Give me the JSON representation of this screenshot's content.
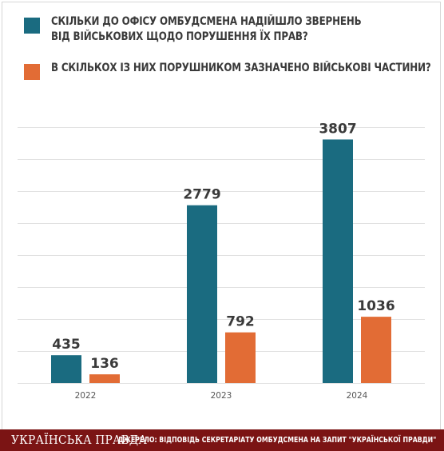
{
  "colors": {
    "series1": "#1a6b80",
    "series2": "#e26c35",
    "grid": "#e1e1e1",
    "footer": "#7b1414"
  },
  "chart_data": {
    "type": "bar",
    "categories": [
      "2022",
      "2023",
      "2024"
    ],
    "series": [
      {
        "name": "Скільки до офісу омбудсмена надійшло звернень від військових щодо порушення їх прав?",
        "values": [
          435,
          2779,
          3807
        ],
        "color": "#1a6b80"
      },
      {
        "name": "В скількох із них порушником зазначено військові частини?",
        "values": [
          136,
          792,
          1036
        ],
        "color": "#e26c35"
      }
    ],
    "ylim": [
      0,
      4000
    ],
    "grid": true,
    "legend": "top-left"
  },
  "legend": [
    {
      "lines": [
        "СКІЛЬКИ ДО ОФІСУ ОМБУДСМЕНА НАДІЙШЛО ЗВЕРНЕНЬ",
        "ВІД ВІЙСЬКОВИХ ЩОДО ПОРУШЕННЯ ЇХ ПРАВ?"
      ]
    },
    {
      "lines": [
        "В СКІЛЬКОХ ІЗ НИХ ПОРУШНИКОМ ЗАЗНАЧЕНО ВІЙСЬКОВІ ЧАСТИНИ?"
      ]
    }
  ],
  "footer": {
    "brand": "УКРАЇНСЬКА ПРАВДА",
    "source": "ДЖЕРЕЛО: ВІДПОВІДЬ СЕКРЕТАРІАТУ ОМБУДСМЕНА НА ЗАПИТ \"УКРАЇНСЬКОЇ ПРАВДИ\""
  }
}
